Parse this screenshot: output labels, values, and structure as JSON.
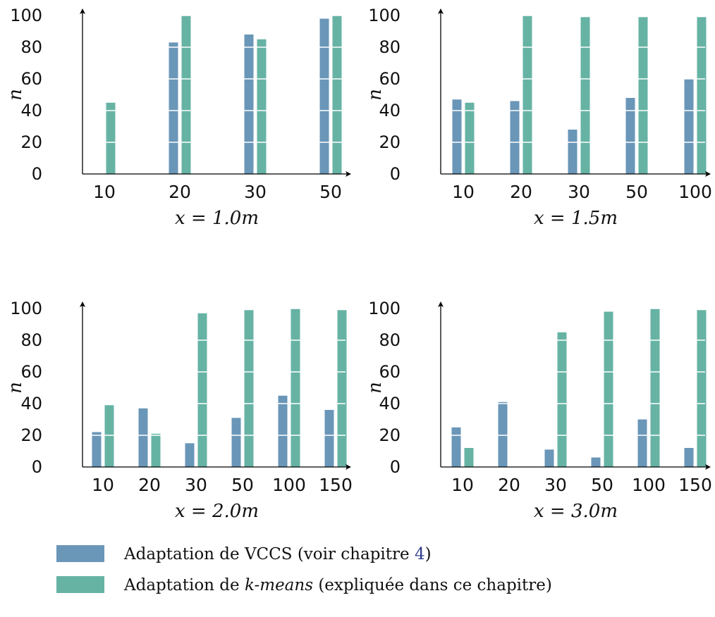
{
  "chart_data": [
    {
      "type": "bar",
      "xlabel": "x = 1.0m",
      "ylabel": "n",
      "ylim": [
        0,
        100
      ],
      "yticks": [
        0,
        20,
        40,
        60,
        80,
        100
      ],
      "grid": "horizontal white lines through bars at tick values",
      "categories": [
        "10",
        "20",
        "30",
        "50"
      ],
      "series": [
        {
          "name": "Adaptation de VCCS (voir chapitre 4)",
          "values": [
            0,
            83,
            88,
            98
          ]
        },
        {
          "name": "Adaptation de k-means (expliquée dans ce chapitre)",
          "values": [
            45,
            100,
            85,
            100
          ]
        }
      ]
    },
    {
      "type": "bar",
      "xlabel": "x = 1.5m",
      "ylabel": "n",
      "ylim": [
        0,
        100
      ],
      "yticks": [
        0,
        20,
        40,
        60,
        80,
        100
      ],
      "grid": "horizontal white lines through bars at tick values",
      "categories": [
        "10",
        "20",
        "30",
        "50",
        "100"
      ],
      "series": [
        {
          "name": "Adaptation de VCCS (voir chapitre 4)",
          "values": [
            47,
            46,
            28,
            48,
            60
          ]
        },
        {
          "name": "Adaptation de k-means (expliquée dans ce chapitre)",
          "values": [
            45,
            100,
            99,
            99,
            99
          ]
        }
      ]
    },
    {
      "type": "bar",
      "xlabel": "x = 2.0m",
      "ylabel": "n",
      "ylim": [
        0,
        100
      ],
      "yticks": [
        0,
        20,
        40,
        60,
        80,
        100
      ],
      "grid": "horizontal white lines through bars at tick values",
      "categories": [
        "10",
        "20",
        "30",
        "50",
        "100",
        "150"
      ],
      "series": [
        {
          "name": "Adaptation de VCCS (voir chapitre 4)",
          "values": [
            22,
            37,
            15,
            31,
            45,
            36
          ]
        },
        {
          "name": "Adaptation de k-means (expliquée dans ce chapitre)",
          "values": [
            39,
            21,
            97,
            99,
            100,
            99
          ]
        }
      ]
    },
    {
      "type": "bar",
      "xlabel": "x = 3.0m",
      "ylabel": "n",
      "ylim": [
        0,
        100
      ],
      "yticks": [
        0,
        20,
        40,
        60,
        80,
        100
      ],
      "grid": "horizontal white lines through bars at tick values",
      "categories": [
        "10",
        "20",
        "30",
        "50",
        "100",
        "150"
      ],
      "series": [
        {
          "name": "Adaptation de VCCS (voir chapitre 4)",
          "values": [
            25,
            41,
            11,
            6,
            30,
            12
          ]
        },
        {
          "name": "Adaptation de k-means (expliquée dans ce chapitre)",
          "values": [
            12,
            0,
            85,
            98,
            100,
            99
          ]
        }
      ]
    }
  ],
  "colors": {
    "vccs": "#6a96b8",
    "kmeans": "#66b3a4",
    "axis": "#000000",
    "gridline": "#ffffff",
    "chapter_ref": "#2b3a8f"
  },
  "legend": {
    "placement": "bottom-left",
    "items": [
      {
        "color": "#6a96b8",
        "text_before": "Adaptation de VCCS (voir chapitre ",
        "ref": "4",
        "text_after": ")"
      },
      {
        "color": "#66b3a4",
        "text_before": "Adaptation de ",
        "emph": "k-means",
        "text_after": " (expliquée dans ce chapitre)"
      }
    ]
  }
}
